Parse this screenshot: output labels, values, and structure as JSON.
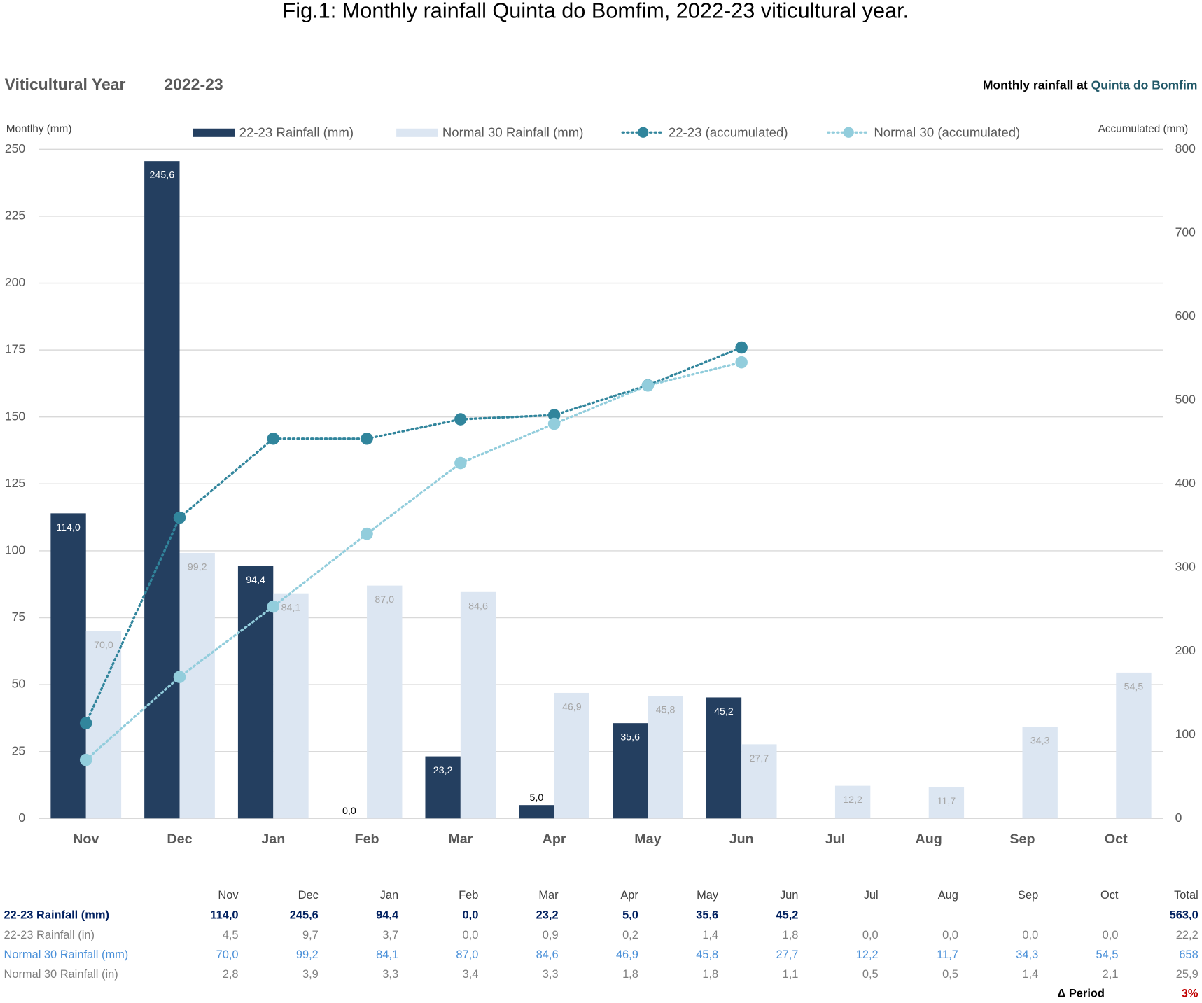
{
  "chart_data": {
    "type": "bar",
    "title": "Fig.1: Monthly rainfall Quinta do Bomfim, 2022-23 viticultural year.",
    "subtitle_left": "Viticultural Year",
    "subtitle_year": "2022-23",
    "subtitle_right": "Monthly rainfall at ",
    "subtitle_place": "Quinta do Bomfim",
    "ylabel": "Montlhy (mm)",
    "y2label": "Accumulated (mm)",
    "categories": [
      "Nov",
      "Dec",
      "Jan",
      "Feb",
      "Mar",
      "Apr",
      "May",
      "Jun",
      "Jul",
      "Aug",
      "Sep",
      "Oct"
    ],
    "ylim": [
      0,
      250
    ],
    "yticks": [
      0,
      25,
      50,
      75,
      100,
      125,
      150,
      175,
      200,
      225,
      250
    ],
    "y2lim": [
      0,
      800
    ],
    "y2ticks": [
      0,
      100,
      200,
      300,
      400,
      500,
      600,
      700,
      800
    ],
    "grid": true,
    "series": [
      {
        "name": "22-23  Rainfall (mm)",
        "type": "bar",
        "color": "#243f60",
        "values": [
          114.0,
          245.6,
          94.4,
          0.0,
          23.2,
          5.0,
          35.6,
          45.2,
          null,
          null,
          null,
          null
        ],
        "value_labels": [
          "114,0",
          "245,6",
          "94,4",
          "0,0",
          "23,2",
          "5,0",
          "35,6",
          "45,2",
          null,
          null,
          null,
          null
        ]
      },
      {
        "name": "Normal 30 Rainfall (mm)",
        "type": "bar",
        "color": "#dce6f2",
        "values": [
          70.0,
          99.2,
          84.1,
          87.0,
          84.6,
          46.9,
          45.8,
          27.7,
          12.2,
          11.7,
          34.3,
          54.5
        ],
        "value_labels": [
          "70,0",
          "99,2",
          "84,1",
          "87,0",
          "84,6",
          "46,9",
          "45,8",
          "27,7",
          "12,2",
          "11,7",
          "34,3",
          "54,5"
        ]
      },
      {
        "name": "22-23 (accumulated)",
        "type": "line",
        "axis": "y2",
        "color": "#31859c",
        "values": [
          114.0,
          359.6,
          454.0,
          454.0,
          477.2,
          482.2,
          517.8,
          563.0,
          null,
          null,
          null,
          null
        ]
      },
      {
        "name": "Normal 30 (accumulated)",
        "type": "line",
        "axis": "y2",
        "color": "#92cddc",
        "values": [
          70.0,
          169.2,
          253.3,
          340.3,
          424.9,
          471.8,
          517.6,
          545.3,
          null,
          null,
          null,
          null
        ]
      }
    ]
  },
  "table": {
    "columns": [
      "Nov",
      "Dec",
      "Jan",
      "Feb",
      "Mar",
      "Apr",
      "May",
      "Jun",
      "Jul",
      "Aug",
      "Sep",
      "Oct",
      "Total"
    ],
    "rows": [
      {
        "label": "22-23  Rainfall (mm)",
        "values": [
          "114,0",
          "245,6",
          "94,4",
          "0,0",
          "23,2",
          "5,0",
          "35,6",
          "45,2",
          null,
          null,
          null,
          null,
          "563,0"
        ]
      },
      {
        "label": "22-23  Rainfall (in)",
        "values": [
          "4,5",
          "9,7",
          "3,7",
          "0,0",
          "0,9",
          "0,2",
          "1,4",
          "1,8",
          "0,0",
          "0,0",
          "0,0",
          "0,0",
          "22,2"
        ]
      },
      {
        "label": "Normal 30 Rainfall (mm)",
        "values": [
          "70,0",
          "99,2",
          "84,1",
          "87,0",
          "84,6",
          "46,9",
          "45,8",
          "27,7",
          "12,2",
          "11,7",
          "34,3",
          "54,5",
          "658"
        ]
      },
      {
        "label": "Normal 30 Rainfall (in)",
        "values": [
          "2,8",
          "3,9",
          "3,3",
          "3,4",
          "3,3",
          "1,8",
          "1,8",
          "1,1",
          "0,5",
          "0,5",
          "1,4",
          "2,1",
          "25,9"
        ]
      }
    ],
    "delta_label": "Δ Period",
    "delta_value": "3%"
  }
}
